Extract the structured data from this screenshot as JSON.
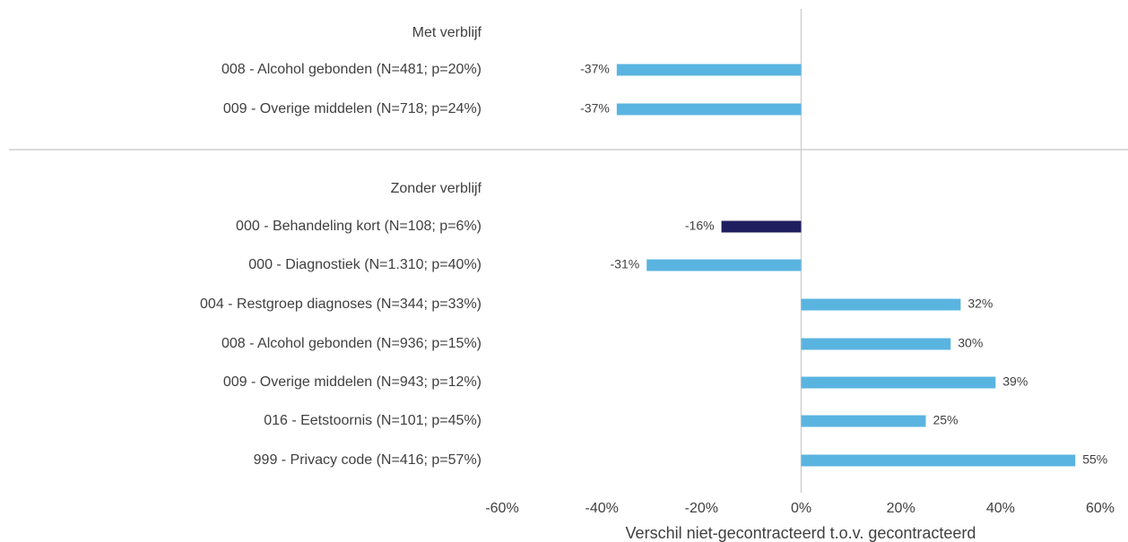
{
  "chart_data": {
    "type": "bar",
    "orientation": "horizontal",
    "x_label": "Verschil niet-gecontracteerd t.o.v. gecontracteerd",
    "categories": [
      "Met verblijf",
      "008 - Alcohol gebonden (N=481; p=20%)",
      "009 - Overige middelen (N=718; p=24%)",
      "Zonder verblijf",
      "000 - Behandeling kort (N=108; p=6%)",
      "000 - Diagnostiek (N=1.310; p=40%)",
      "004 - Restgroep diagnoses (N=344; p=33%)",
      "008 - Alcohol gebonden (N=936; p=15%)",
      "009 - Overige middelen (N=943; p=12%)",
      "016 - Eetstoornis (N=101; p=45%)",
      "999 - Privacy code (N=416; p=57%)"
    ],
    "values": [
      null,
      -37,
      -37,
      null,
      -16,
      -31,
      32,
      30,
      39,
      25,
      55
    ],
    "value_labels": [
      null,
      "-37%",
      "-37%",
      null,
      "-16%",
      "-31%",
      "32%",
      "30%",
      "39%",
      "25%",
      "55%"
    ],
    "colors": [
      null,
      "#5ab4e0",
      "#5ab4e0",
      null,
      "#1f1f5f",
      "#5ab4e0",
      "#5ab4e0",
      "#5ab4e0",
      "#5ab4e0",
      "#5ab4e0",
      "#5ab4e0"
    ],
    "xlim": [
      -60,
      60
    ],
    "xticks": [
      {
        "value": -60,
        "label": "-60%"
      },
      {
        "value": -40,
        "label": "-40%"
      },
      {
        "value": -20,
        "label": "-20%"
      },
      {
        "value": 0,
        "label": "0%"
      },
      {
        "value": 20,
        "label": "20%"
      },
      {
        "value": 40,
        "label": "40%"
      },
      {
        "value": 60,
        "label": "60%"
      }
    ],
    "grid": false
  }
}
